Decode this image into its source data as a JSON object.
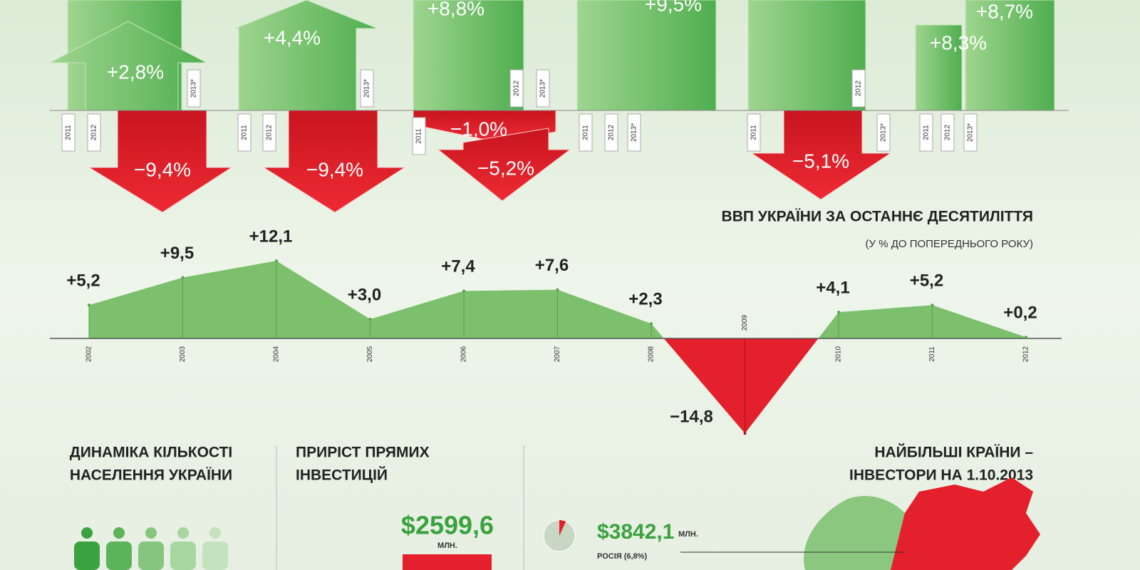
{
  "arrows": [
    {
      "up": [
        "+2,8%"
      ],
      "down": [
        "−9,4%"
      ],
      "years": [
        "2011",
        "2012",
        "2013*"
      ]
    },
    {
      "up": [
        "+4,4%"
      ],
      "down": [
        "−9,4%"
      ],
      "years": [
        "2011",
        "2012",
        "2013*"
      ]
    },
    {
      "up": [
        "+8,8%"
      ],
      "down": [
        "−1,0%",
        "−5,2%"
      ],
      "years": [
        "2011",
        "2012",
        "2013*"
      ]
    },
    {
      "up": [
        "+9,5%"
      ],
      "down": [],
      "years": [
        "2011",
        "2012",
        "2013*"
      ]
    },
    {
      "up": [],
      "down": [
        "−5,1%"
      ],
      "years": [
        "2011",
        "2012",
        "2013*"
      ]
    },
    {
      "up": [
        "+8,3%",
        "+8,7%"
      ],
      "down": [],
      "years": [
        "2011",
        "2012",
        "2013*"
      ]
    }
  ],
  "chart_data": {
    "type": "area",
    "title": "ВВП УКРАЇНИ ЗА ОСТАННЄ ДЕСЯТИЛІТТЯ",
    "subtitle": "(У % ДО ПОПЕРЕДНЬОГО РОКУ)",
    "categories": [
      "2002",
      "2003",
      "2004",
      "2005",
      "2006",
      "2007",
      "2008",
      "2009",
      "2010",
      "2011",
      "2012"
    ],
    "values": [
      5.2,
      9.5,
      12.1,
      3.0,
      7.4,
      7.6,
      2.3,
      -14.8,
      4.1,
      5.2,
      0.2
    ],
    "value_labels": [
      "+5,2",
      "+9,5",
      "+12,1",
      "+3,0",
      "+7,4",
      "+7,6",
      "+2,3",
      "−14,8",
      "+4,1",
      "+5,2",
      "+0,2"
    ],
    "color": "#7cbf6c",
    "negative_color": "#e3202b"
  },
  "population": {
    "title": [
      "ДИНАМІКА КІЛЬКОСТІ",
      "НАСЕЛЕННЯ УКРАЇНИ"
    ]
  },
  "investment": {
    "title": [
      "ПРИРІСТ ПРЯМИХ",
      "ІНВЕСТИЦІЙ"
    ],
    "amount": "$2599,6",
    "unit": "МЛН."
  },
  "investors": {
    "title": [
      "НАЙБІЛЬШІ КРАЇНИ –",
      "ІНВЕСТОРИ НА 1.10.2013"
    ],
    "amount": "$3842,1",
    "unit": "МЛН.",
    "country": "РОСІЯ (6,8%)",
    "share": 6.8
  }
}
